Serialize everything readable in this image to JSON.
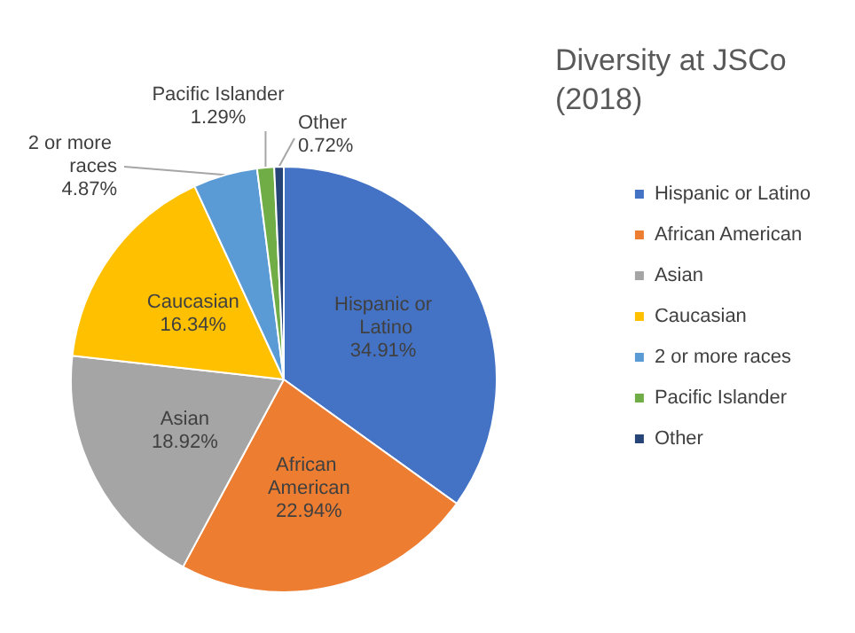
{
  "chart_data": {
    "type": "pie",
    "title": "Diversity at JSCo (2018)",
    "categories": [
      "Hispanic or Latino",
      "African American",
      "Asian",
      "Caucasian",
      "2 or more races",
      "Pacific Islander",
      "Other"
    ],
    "values": [
      34.91,
      22.94,
      18.92,
      16.34,
      4.87,
      1.29,
      0.72
    ],
    "value_labels": [
      "34.91%",
      "22.94%",
      "18.92%",
      "16.34%",
      "4.87%",
      "1.29%",
      "0.72%"
    ],
    "colors": [
      "#4472c4",
      "#ed7d31",
      "#a5a5a5",
      "#ffc000",
      "#5b9bd5",
      "#70ad47",
      "#264478"
    ],
    "legend": "right"
  }
}
